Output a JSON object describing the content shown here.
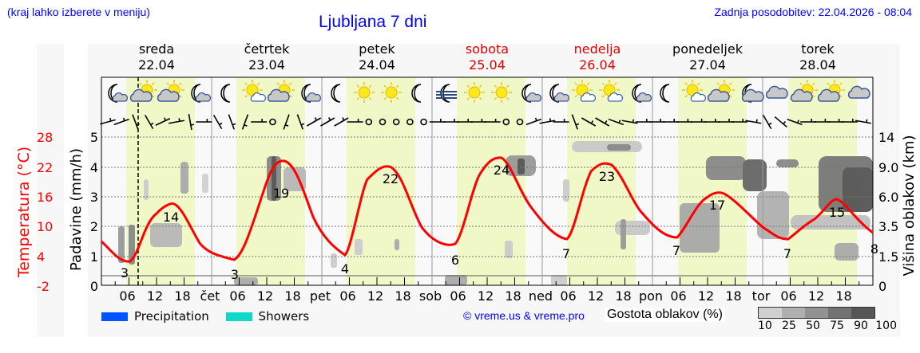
{
  "header": {
    "hint": "(kraj lahko izberete v meniju)",
    "title": "Ljubljana 7 dni",
    "updated": "Zadnja posodobitev: 22.04.2026 - 08:04"
  },
  "days": [
    {
      "name": "sreda",
      "date": "22.04",
      "weekend": false,
      "abbr": ""
    },
    {
      "name": "četrtek",
      "date": "23.04",
      "weekend": false,
      "abbr": "čet"
    },
    {
      "name": "petek",
      "date": "24.04",
      "weekend": false,
      "abbr": "pet"
    },
    {
      "name": "sobota",
      "date": "25.04",
      "weekend": true,
      "abbr": "sob"
    },
    {
      "name": "nedelja",
      "date": "26.04",
      "weekend": true,
      "abbr": "ned"
    },
    {
      "name": "ponedeljek",
      "date": "27.04",
      "weekend": false,
      "abbr": "pon"
    },
    {
      "name": "torek",
      "date": "28.04",
      "weekend": false,
      "abbr": "tor"
    }
  ],
  "hour_ticks": [
    "06",
    "12",
    "18"
  ],
  "axes": {
    "left_temp_label": "Temperatura (°C)",
    "left_temp_ticks": [
      "28",
      "22",
      "16",
      "10",
      "4",
      "-2"
    ],
    "left_precip_label": "Padavine (mm/h)",
    "left_precip_ticks": [
      "5",
      "4",
      "3",
      "2",
      "1",
      "0"
    ],
    "right_label": "Višina oblakov (km)",
    "right_ticks": [
      "14",
      "9.0",
      "6.0",
      "3.5",
      "1.5",
      "0"
    ]
  },
  "icons": [
    [
      "moon-cloud",
      "sun-cloud",
      "sun-cloud",
      "moon-cloud"
    ],
    [
      "moon",
      "sun-cloud",
      "sun-cloud",
      "moon-cloud"
    ],
    [
      "moon",
      "sun",
      "sun",
      "moon"
    ],
    [
      "moon-fog",
      "sun",
      "sun",
      "moon-cloud"
    ],
    [
      "moon-cloud",
      "sun-cloud",
      "sun-cloud",
      "moon-cloud"
    ],
    [
      "moon",
      "sun-cloud",
      "sun-cloud",
      "moon-cloud"
    ],
    [
      "cloud",
      "sun-cloud",
      "sun-cloud",
      "cloud"
    ]
  ],
  "legend": {
    "precipitation": {
      "label": "Precipitation",
      "color": "#0055ff"
    },
    "showers": {
      "label": "Showers",
      "color": "#10d8c8"
    },
    "copyright": "© vreme.us & vreme.pro",
    "density_label": "Gostota oblakov (%)",
    "density_ticks": [
      "10",
      "25",
      "50",
      "75",
      "90",
      "100"
    ],
    "density_colors": [
      "#d0d0d0",
      "#b0b0b0",
      "#929292",
      "#727272",
      "#555555"
    ]
  },
  "colors": {
    "temperature": "#ff0000",
    "daytime_band": "#f0f8c8",
    "panel_bg": "#f7f7f7",
    "title_blue": "#0000ff",
    "weekend_red": "#e00000"
  },
  "chart_data": {
    "type": "line",
    "title": "Ljubljana 7 dni",
    "xlabel": "",
    "ylabel": "Temperatura (°C)",
    "ylim": [
      -2,
      28
    ],
    "secondary_axes": {
      "precipitation_mm_h": [
        0,
        5
      ],
      "cloud_height_km_ticks": [
        0,
        1.5,
        3.5,
        6.0,
        9.0,
        14
      ]
    },
    "current_time_marker": "22.04 08:00",
    "series": [
      {
        "name": "Temperatura",
        "points": [
          {
            "t": "22.04 00:00",
            "v": 7
          },
          {
            "t": "22.04 06:00",
            "v": 3
          },
          {
            "t": "22.04 15:00",
            "v": 14
          },
          {
            "t": "23.04 06:00",
            "v": 3
          },
          {
            "t": "23.04 15:00",
            "v": 19
          },
          {
            "t": "24.04 06:00",
            "v": 4
          },
          {
            "t": "24.04 15:00",
            "v": 22
          },
          {
            "t": "25.04 06:00",
            "v": 6
          },
          {
            "t": "25.04 15:00",
            "v": 24
          },
          {
            "t": "26.04 06:00",
            "v": 7
          },
          {
            "t": "26.04 15:00",
            "v": 23
          },
          {
            "t": "27.04 06:00",
            "v": 7
          },
          {
            "t": "27.04 15:00",
            "v": 17
          },
          {
            "t": "28.04 06:00",
            "v": 7
          },
          {
            "t": "28.04 15:00",
            "v": 15
          },
          {
            "t": "28.04 24:00",
            "v": 8
          }
        ]
      }
    ],
    "annotations": {
      "min_labels": [
        "3",
        "3",
        "4",
        "6",
        "7",
        "7",
        "7",
        "8"
      ],
      "max_labels": [
        "14",
        "19",
        "22",
        "24",
        "23",
        "17",
        "15"
      ]
    },
    "grid": true,
    "legend_position": "bottom"
  }
}
